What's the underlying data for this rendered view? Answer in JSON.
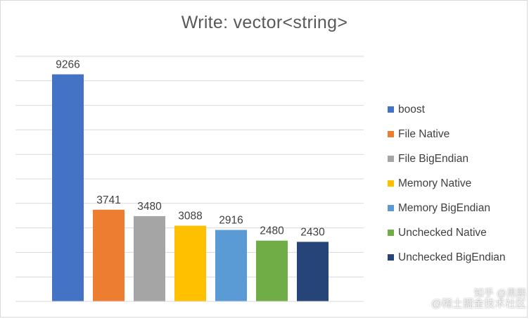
{
  "chart_data": {
    "type": "bar",
    "title": "Write: vector<string>",
    "xlabel": "",
    "ylabel": "",
    "ylim": [
      0,
      10000
    ],
    "grid": true,
    "legend_position": "right",
    "series": [
      {
        "name": "boost",
        "value": 9266,
        "color": "#4472c4"
      },
      {
        "name": "File Native",
        "value": 3741,
        "color": "#ed7d31"
      },
      {
        "name": "File BigEndian",
        "value": 3480,
        "color": "#a5a5a5"
      },
      {
        "name": "Memory Native",
        "value": 3088,
        "color": "#ffc000"
      },
      {
        "name": "Memory BigEndian",
        "value": 2916,
        "color": "#5b9bd5"
      },
      {
        "name": "Unchecked Native",
        "value": 2480,
        "color": "#70ad47"
      },
      {
        "name": "Unchecked BigEndian",
        "value": 2430,
        "color": "#264478"
      }
    ]
  },
  "watermark": {
    "line1": "知乎 @黑鹏",
    "line2": "@稀土掘金技术社区"
  }
}
